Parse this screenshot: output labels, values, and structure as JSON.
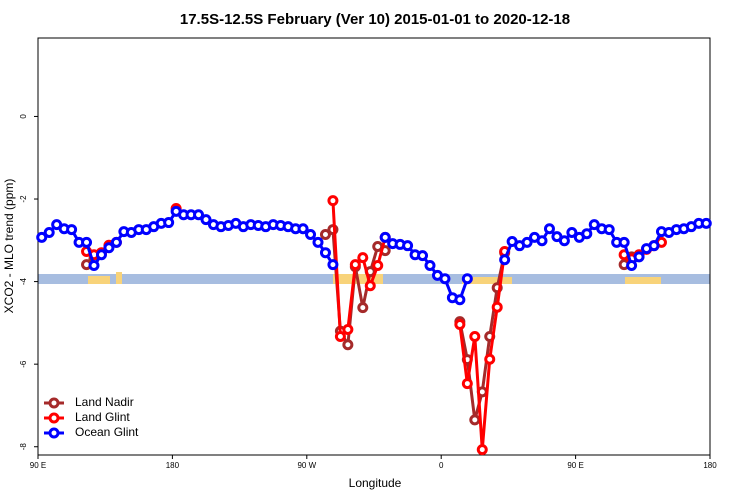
{
  "chart_data": {
    "type": "line",
    "title": "17.5S-12.5S February (Ver 10)   2015-01-01 to 2020-12-18",
    "x_label": "Longitude",
    "y_label": "XCO2 - MLO trend (ppm)",
    "xlim": [
      90,
      540
    ],
    "ylim": [
      -8.2,
      1.9
    ],
    "xticks": [
      {
        "value": 90,
        "label": "90 E"
      },
      180,
      {
        "value": 270,
        "label": "90 W"
      },
      {
        "value": 360,
        "label": "0"
      },
      {
        "value": 450,
        "label": "90 E"
      },
      {
        "value": 540,
        "label": "180"
      }
    ],
    "yticks": [
      0,
      -2,
      -4,
      -6,
      -8
    ],
    "legend": "bottom-left",
    "x": [
      92.5,
      97.5,
      102.5,
      107.5,
      112.5,
      117.5,
      122.5,
      127.5,
      132.5,
      137.5,
      142.5,
      147.5,
      152.5,
      157.5,
      162.5,
      167.5,
      172.5,
      177.5,
      182.5,
      187.5,
      192.5,
      197.5,
      202.5,
      207.5,
      212.5,
      217.5,
      222.5,
      227.5,
      232.5,
      237.5,
      242.5,
      247.5,
      252.5,
      257.5,
      262.5,
      267.5,
      272.5,
      277.5,
      282.5,
      287.5,
      292.5,
      297.5,
      302.5,
      307.5,
      312.5,
      317.5,
      322.5,
      327.5,
      332.5,
      337.5,
      342.5,
      347.5,
      352.5,
      357.5,
      362.5,
      367.5,
      372.5,
      377.5,
      382.5,
      387.5,
      392.5,
      397.5,
      402.5,
      407.5,
      412.5,
      417.5,
      422.5,
      427.5,
      432.5,
      437.5,
      442.5,
      447.5,
      452.5,
      457.5,
      462.5,
      467.5,
      472.5,
      477.5,
      482.5,
      487.5,
      492.5,
      497.5,
      502.5,
      507.5,
      512.5,
      517.5,
      522.5,
      527.5,
      532.5,
      537.5
    ],
    "series": [
      {
        "name": "Land Nadir",
        "color": "#a52a2a",
        "values": [
          null,
          null,
          null,
          null,
          null,
          null,
          -3.59,
          -3.45,
          -3.32,
          null,
          null,
          null,
          null,
          null,
          null,
          null,
          null,
          null,
          null,
          null,
          null,
          null,
          null,
          null,
          null,
          null,
          null,
          null,
          null,
          null,
          null,
          null,
          null,
          null,
          null,
          null,
          null,
          null,
          -2.86,
          -2.74,
          -5.2,
          -5.53,
          -3.64,
          -4.63,
          -3.76,
          -3.15,
          -3.25,
          null,
          null,
          null,
          null,
          null,
          null,
          null,
          null,
          null,
          -4.97,
          -5.89,
          -7.35,
          -6.67,
          -5.33,
          -4.15,
          -3.3,
          null,
          null,
          null,
          null,
          null,
          null,
          null,
          null,
          null,
          null,
          null,
          null,
          null,
          null,
          null,
          -3.59,
          -3.4,
          null,
          null,
          null,
          null,
          null,
          null,
          null,
          null,
          null,
          null
        ]
      },
      {
        "name": "Land Glint",
        "color": "#ff0000",
        "values": [
          null,
          null,
          null,
          null,
          null,
          null,
          -3.27,
          -3.35,
          -3.3,
          -3.12,
          -3.05,
          null,
          null,
          null,
          null,
          null,
          null,
          null,
          -2.23,
          null,
          null,
          null,
          null,
          null,
          null,
          null,
          null,
          null,
          null,
          null,
          null,
          null,
          null,
          null,
          null,
          null,
          null,
          null,
          null,
          -2.04,
          -5.33,
          -5.16,
          -3.59,
          -3.42,
          -4.1,
          -3.61,
          -2.93,
          null,
          null,
          null,
          null,
          null,
          null,
          null,
          null,
          null,
          -5.04,
          -6.47,
          -5.33,
          -8.07,
          -5.88,
          -4.62,
          -3.27,
          null,
          null,
          null,
          null,
          null,
          null,
          null,
          null,
          null,
          null,
          null,
          null,
          null,
          null,
          null,
          -3.35,
          -3.45,
          -3.35,
          -3.22,
          -3.13,
          -3.05,
          null,
          null,
          null,
          null,
          null,
          null
        ]
      },
      {
        "name": "Ocean Glint",
        "color": "#0000ff",
        "values": [
          -2.93,
          -2.81,
          -2.62,
          -2.72,
          -2.74,
          -3.05,
          -3.05,
          -3.61,
          -3.35,
          -3.18,
          -3.05,
          -2.79,
          -2.81,
          -2.74,
          -2.74,
          -2.67,
          -2.59,
          -2.57,
          -2.3,
          -2.38,
          -2.38,
          -2.38,
          -2.5,
          -2.62,
          -2.67,
          -2.64,
          -2.59,
          -2.67,
          -2.62,
          -2.64,
          -2.67,
          -2.62,
          -2.64,
          -2.67,
          -2.72,
          -2.72,
          -2.86,
          -3.05,
          -3.3,
          -3.59,
          null,
          null,
          null,
          null,
          null,
          null,
          -2.93,
          -3.08,
          -3.1,
          -3.13,
          -3.35,
          -3.37,
          -3.61,
          -3.85,
          -3.93,
          -4.39,
          -4.44,
          -3.93,
          null,
          null,
          null,
          null,
          -3.47,
          -3.03,
          -3.13,
          -3.05,
          -2.93,
          -3.01,
          -2.72,
          -2.91,
          -3.01,
          -2.81,
          -2.93,
          -2.84,
          -2.62,
          -2.72,
          -2.74,
          -3.05,
          -3.05,
          -3.61,
          -3.4,
          -3.2,
          -3.13,
          -2.79,
          -2.81,
          -2.74,
          -2.72,
          -2.67,
          -2.59,
          -2.59
        ]
      }
    ]
  }
}
